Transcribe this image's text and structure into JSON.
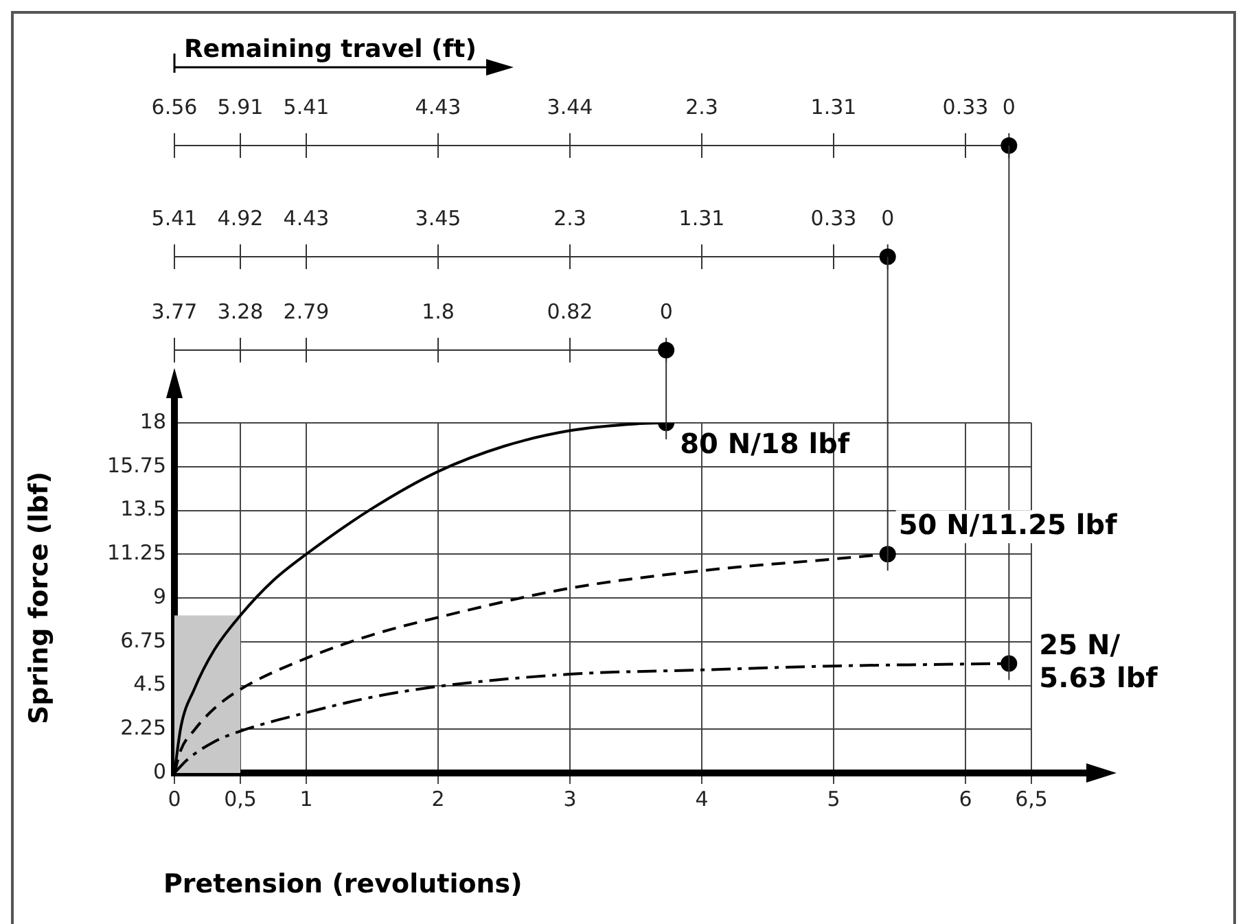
{
  "chart_data": {
    "type": "line",
    "xlabel": "Pretension (revolutions)",
    "ylabel": "Spring force (lbf)",
    "xlim": [
      0,
      6.5
    ],
    "xticks": [
      0,
      {
        "value": 0.5,
        "label": "0,5"
      },
      1,
      2,
      3,
      4,
      5,
      6,
      {
        "value": 6.5,
        "label": "6,5"
      }
    ],
    "ylim": [
      0,
      18
    ],
    "yticks": [
      0,
      2.25,
      4.5,
      6.75,
      9,
      11.25,
      13.5,
      15.75,
      18
    ],
    "grid": true,
    "legend": false,
    "bands": [
      {
        "axis": "x",
        "from": 0,
        "to": 0.5,
        "color": "#c8c8c8"
      }
    ],
    "annotations": [
      "Remaining travel (ft)",
      {
        "text": "6.56",
        "x": 0
      },
      {
        "text": "5.91",
        "x": 0.5
      },
      {
        "text": "5.41",
        "x": 1
      },
      {
        "text": "4.43",
        "x": 2
      },
      {
        "text": "3.44",
        "x": 3
      },
      {
        "text": "2.3",
        "x": 4
      },
      {
        "text": "1.31",
        "x": 5
      },
      {
        "text": "0.33",
        "x": 6
      },
      {
        "text": "0",
        "x": 6.33
      },
      {
        "text": "5.41",
        "x": 0
      },
      {
        "text": "4.92",
        "x": 0.5
      },
      {
        "text": "4.43",
        "x": 1
      },
      {
        "text": "3.45",
        "x": 2
      },
      {
        "text": "2.3",
        "x": 3
      },
      {
        "text": "1.31",
        "x": 4
      },
      {
        "text": "0.33",
        "x": 5
      },
      {
        "text": "0",
        "x": 5.41
      },
      {
        "text": "3.77",
        "x": 0
      },
      {
        "text": "3.28",
        "x": 0.5
      },
      {
        "text": "2.79",
        "x": 1
      },
      {
        "text": "1.8",
        "x": 2
      },
      {
        "text": "0.82",
        "x": 3
      },
      {
        "text": "0",
        "x": 3.73
      }
    ],
    "ref_lines": [
      {
        "axis": "x",
        "value": 6.33,
        "color": "#333333"
      },
      {
        "axis": "x",
        "value": 5.41,
        "color": "#333333"
      }
    ],
    "series": [
      {
        "name": "80 N/18 lbf",
        "color": "#000000",
        "line_style": "solid",
        "x": [
          0,
          0.05,
          0.15,
          0.3,
          0.5,
          0.75,
          1,
          1.5,
          2,
          2.5,
          3,
          3.5,
          3.73
        ],
        "values": [
          0,
          2.4,
          4.3,
          6.3,
          8.1,
          9.9,
          11.25,
          13.6,
          15.5,
          16.8,
          17.6,
          17.95,
          18
        ]
      },
      {
        "name": "50 N/11.25 lbf",
        "color": "#000000",
        "line_style": "dashed",
        "x": [
          0,
          0.05,
          0.15,
          0.3,
          0.5,
          1,
          1.5,
          2,
          3,
          4,
          5,
          5.41
        ],
        "values": [
          0,
          1.2,
          2.2,
          3.3,
          4.3,
          5.9,
          7.1,
          8,
          9.5,
          10.4,
          11,
          11.25
        ]
      },
      {
        "name": "25 N/ 5.63 lbf",
        "color": "#000000",
        "line_style": "dashdot",
        "x": [
          0,
          0.1,
          0.3,
          0.5,
          1,
          1.5,
          2,
          3,
          4,
          5,
          6,
          6.33
        ],
        "values": [
          0,
          0.7,
          1.6,
          2.15,
          3.1,
          3.9,
          4.45,
          5.08,
          5.3,
          5.5,
          5.6,
          5.63
        ]
      }
    ]
  }
}
